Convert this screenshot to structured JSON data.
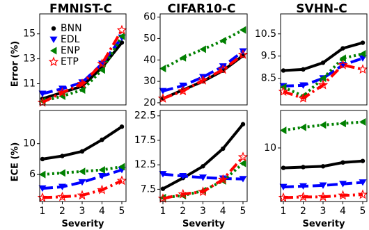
{
  "figure": {
    "ylabel_top": "Error (%)",
    "ylabel_bottom": "ECE (%)"
  },
  "colors": {
    "BNN": "#000000",
    "EDL": "#0000ff",
    "ENP": "#008000",
    "ETP": "#ff0000"
  },
  "legend": [
    "BNN",
    "EDL",
    "ENP",
    "ETP"
  ],
  "chart_data": [
    {
      "type": "line",
      "title": "FMNIST-C",
      "xlabel": "",
      "ylabel": "Error (%)",
      "x": [
        1,
        2,
        3,
        4,
        5
      ],
      "ylim": [
        9.3,
        16.6
      ],
      "yticks": [
        11,
        13,
        15
      ],
      "ytick_labels": [
        "11",
        "13",
        "15"
      ],
      "series": [
        {
          "name": "BNN",
          "values": [
            9.8,
            10.3,
            10.8,
            12.3,
            14.3
          ]
        },
        {
          "name": "EDL",
          "values": [
            10.2,
            10.6,
            11.1,
            12.6,
            14.7
          ]
        },
        {
          "name": "ENP",
          "values": [
            9.6,
            10.0,
            10.5,
            12.1,
            14.8
          ]
        },
        {
          "name": "ETP",
          "values": [
            9.5,
            10.3,
            11.0,
            12.6,
            15.3
          ]
        }
      ]
    },
    {
      "type": "line",
      "title": "CIFAR10-C",
      "xlabel": "",
      "ylabel": "",
      "x": [
        1,
        2,
        3,
        4,
        5
      ],
      "ylim": [
        19,
        61.5
      ],
      "yticks": [
        20,
        30,
        40,
        50,
        60
      ],
      "ytick_labels": [
        "20",
        "30",
        "40",
        "50",
        "60"
      ],
      "series": [
        {
          "name": "BNN",
          "values": [
            22,
            26,
            30,
            35,
            42
          ]
        },
        {
          "name": "EDL",
          "values": [
            25.5,
            28,
            32,
            37,
            44
          ]
        },
        {
          "name": "ENP",
          "values": [
            36,
            41,
            45,
            49,
            54
          ]
        },
        {
          "name": "ETP",
          "values": [
            22,
            25.5,
            30.5,
            35.5,
            42.5
          ]
        }
      ]
    },
    {
      "type": "line",
      "title": "SVHN-C",
      "xlabel": "",
      "ylabel": "",
      "x": [
        1,
        2,
        3,
        4,
        5
      ],
      "ylim": [
        7.3,
        11.4
      ],
      "yticks": [
        8.5,
        9.5,
        10.5
      ],
      "ytick_labels": [
        "8.5",
        "9.5",
        "10.5"
      ],
      "series": [
        {
          "name": "BNN",
          "values": [
            8.85,
            8.9,
            9.2,
            9.85,
            10.1
          ]
        },
        {
          "name": "EDL",
          "values": [
            8.15,
            8.18,
            8.5,
            9.1,
            9.4
          ]
        },
        {
          "name": "ENP",
          "values": [
            8.1,
            7.7,
            8.5,
            9.4,
            9.6
          ]
        },
        {
          "name": "ETP",
          "values": [
            7.9,
            7.6,
            8.2,
            9.1,
            8.9
          ]
        }
      ]
    },
    {
      "type": "line",
      "title": "",
      "xlabel": "Severity",
      "ylabel": "ECE (%)",
      "x": [
        1,
        2,
        3,
        4,
        5
      ],
      "ylim": [
        2.5,
        14.3
      ],
      "yticks": [
        6,
        10
      ],
      "ytick_labels": [
        "6",
        "10"
      ],
      "series": [
        {
          "name": "BNN",
          "values": [
            8.0,
            8.4,
            9.0,
            10.5,
            12.2
          ]
        },
        {
          "name": "EDL",
          "values": [
            4.2,
            4.4,
            5.0,
            5.8,
            6.6
          ]
        },
        {
          "name": "ENP",
          "values": [
            6.0,
            6.2,
            6.4,
            6.6,
            7.0
          ]
        },
        {
          "name": "ETP",
          "values": [
            3.0,
            3.1,
            3.3,
            4.0,
            5.2
          ]
        }
      ]
    },
    {
      "type": "line",
      "title": "",
      "xlabel": "Severity",
      "ylabel": "",
      "x": [
        1,
        2,
        3,
        4,
        5
      ],
      "ylim": [
        5.0,
        23.6
      ],
      "yticks": [
        7.5,
        12.5,
        17.5,
        22.5
      ],
      "ytick_labels": [
        "7.5",
        "12.5",
        "17.5",
        "22.5"
      ],
      "series": [
        {
          "name": "BNN",
          "values": [
            7.6,
            9.8,
            12.2,
            15.8,
            20.8
          ]
        },
        {
          "name": "EDL",
          "values": [
            10.6,
            10.2,
            9.9,
            9.7,
            9.6
          ]
        },
        {
          "name": "ENP",
          "values": [
            5.8,
            6.2,
            7.2,
            9.2,
            12.8
          ]
        },
        {
          "name": "ETP",
          "values": [
            5.6,
            6.5,
            7.0,
            9.5,
            14.1
          ]
        }
      ]
    },
    {
      "type": "line",
      "title": "",
      "xlabel": "Severity",
      "ylabel": "",
      "x": [
        1,
        2,
        3,
        4,
        5
      ],
      "ylim": [
        3.0,
        14.9
      ],
      "yticks": [
        10
      ],
      "ytick_labels": [
        "10"
      ],
      "series": [
        {
          "name": "BNN",
          "values": [
            7.4,
            7.5,
            7.6,
            8.1,
            8.3
          ]
        },
        {
          "name": "EDL",
          "values": [
            4.9,
            5.0,
            5.1,
            5.3,
            5.5
          ]
        },
        {
          "name": "ENP",
          "values": [
            12.3,
            12.7,
            13.0,
            13.2,
            13.4
          ]
        },
        {
          "name": "ETP",
          "values": [
            3.5,
            3.6,
            3.6,
            3.8,
            3.9
          ]
        }
      ]
    }
  ]
}
